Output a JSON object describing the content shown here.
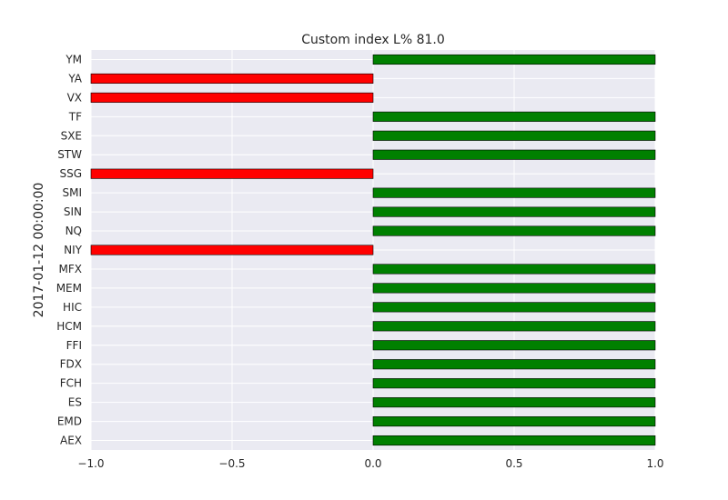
{
  "chart_data": {
    "type": "bar",
    "orientation": "horizontal",
    "title": "Custom index L% 81.0",
    "xlabel": "",
    "ylabel": "2017-01-12 00:00:00",
    "xlim": [
      -1.0,
      1.0
    ],
    "xticks": [
      "−1.0",
      "−0.5",
      "0.0",
      "0.5",
      "1.0"
    ],
    "xtick_values": [
      -1.0,
      -0.5,
      0.0,
      0.5,
      1.0
    ],
    "grid": true,
    "colors": {
      "positive": "#008000",
      "negative": "#ff0000",
      "background": "#eaeaf2",
      "grid": "#ffffff"
    },
    "categories": [
      "YM",
      "YA",
      "VX",
      "TF",
      "SXE",
      "STW",
      "SSG",
      "SMI",
      "SIN",
      "NQ",
      "NIY",
      "MFX",
      "MEM",
      "HIC",
      "HCM",
      "FFI",
      "FDX",
      "FCH",
      "ES",
      "EMD",
      "AEX"
    ],
    "values": [
      1,
      -1,
      -1,
      1,
      1,
      1,
      -1,
      1,
      1,
      1,
      -1,
      1,
      1,
      1,
      1,
      1,
      1,
      1,
      1,
      1,
      1
    ]
  }
}
